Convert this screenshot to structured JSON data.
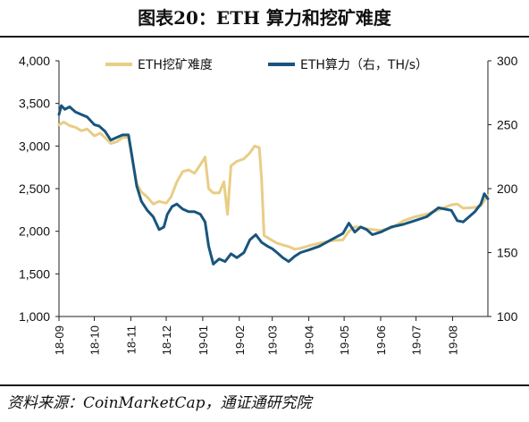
{
  "title": "图表20：ETH 算力和挖矿难度",
  "source": "资料来源：CoinMarketCap，通证通研究院",
  "colors": {
    "difficulty": "#e8cd85",
    "hashrate": "#17557f",
    "axis": "#222222"
  },
  "chart_data": {
    "type": "line",
    "x_type": "date",
    "x_tick_labels": [
      "18-09",
      "18-10",
      "18-11",
      "18-12",
      "19-01",
      "19-02",
      "19-03",
      "19-04",
      "19-05",
      "19-06",
      "19-07",
      "19-08"
    ],
    "xlim": [
      "2018-09-01",
      "2019-08-31"
    ],
    "y_left_ticks": [
      "4,000",
      "3,500",
      "3,000",
      "2,500",
      "2,000",
      "1,500",
      "1,000"
    ],
    "ylim_left": [
      1000,
      4000
    ],
    "y_right_ticks": [
      "300",
      "250",
      "200",
      "150",
      "100"
    ],
    "ylim_right": [
      100,
      300
    ],
    "grid": false,
    "legend_position": "top",
    "series": [
      {
        "name": "ETH挖矿难度",
        "axis": "left",
        "color": "#e8cd85",
        "points": [
          [
            "2018-09-01",
            3250
          ],
          [
            "2018-09-05",
            3280
          ],
          [
            "2018-09-10",
            3240
          ],
          [
            "2018-09-15",
            3220
          ],
          [
            "2018-09-20",
            3180
          ],
          [
            "2018-09-25",
            3200
          ],
          [
            "2018-10-01",
            3120
          ],
          [
            "2018-10-06",
            3150
          ],
          [
            "2018-10-10",
            3100
          ],
          [
            "2018-10-15",
            3030
          ],
          [
            "2018-10-20",
            3050
          ],
          [
            "2018-10-25",
            3100
          ],
          [
            "2018-10-30",
            3100
          ],
          [
            "2018-11-03",
            2780
          ],
          [
            "2018-11-06",
            2560
          ],
          [
            "2018-11-10",
            2460
          ],
          [
            "2018-11-15",
            2400
          ],
          [
            "2018-11-20",
            2320
          ],
          [
            "2018-11-25",
            2350
          ],
          [
            "2018-12-01",
            2330
          ],
          [
            "2018-12-05",
            2400
          ],
          [
            "2018-12-10",
            2580
          ],
          [
            "2018-12-15",
            2700
          ],
          [
            "2018-12-20",
            2720
          ],
          [
            "2018-12-25",
            2680
          ],
          [
            "2018-12-30",
            2780
          ],
          [
            "2019-01-03",
            2870
          ],
          [
            "2019-01-06",
            2500
          ],
          [
            "2019-01-10",
            2450
          ],
          [
            "2019-01-15",
            2450
          ],
          [
            "2019-01-19",
            2580
          ],
          [
            "2019-01-22",
            2200
          ],
          [
            "2019-01-25",
            2770
          ],
          [
            "2019-01-30",
            2820
          ],
          [
            "2019-02-05",
            2850
          ],
          [
            "2019-02-10",
            2920
          ],
          [
            "2019-02-14",
            3000
          ],
          [
            "2019-02-18",
            2980
          ],
          [
            "2019-02-20",
            2600
          ],
          [
            "2019-02-22",
            1950
          ],
          [
            "2019-02-28",
            1900
          ],
          [
            "2019-03-05",
            1860
          ],
          [
            "2019-03-10",
            1840
          ],
          [
            "2019-03-15",
            1820
          ],
          [
            "2019-03-20",
            1790
          ],
          [
            "2019-03-25",
            1800
          ],
          [
            "2019-04-01",
            1830
          ],
          [
            "2019-04-10",
            1860
          ],
          [
            "2019-04-20",
            1890
          ],
          [
            "2019-04-30",
            1900
          ],
          [
            "2019-05-05",
            2000
          ],
          [
            "2019-05-10",
            2050
          ],
          [
            "2019-05-15",
            2050
          ],
          [
            "2019-05-20",
            2030
          ],
          [
            "2019-05-25",
            2020
          ],
          [
            "2019-06-01",
            2010
          ],
          [
            "2019-06-10",
            2040
          ],
          [
            "2019-06-20",
            2120
          ],
          [
            "2019-06-30",
            2170
          ],
          [
            "2019-07-10",
            2200
          ],
          [
            "2019-07-20",
            2250
          ],
          [
            "2019-07-31",
            2310
          ],
          [
            "2019-08-05",
            2320
          ],
          [
            "2019-08-10",
            2270
          ],
          [
            "2019-08-20",
            2280
          ],
          [
            "2019-08-25",
            2300
          ],
          [
            "2019-08-31",
            2420
          ]
        ]
      },
      {
        "name": "ETH算力（右，TH/s）",
        "axis": "right",
        "color": "#17557f",
        "points": [
          [
            "2018-09-01",
            258
          ],
          [
            "2018-09-03",
            265
          ],
          [
            "2018-09-06",
            262
          ],
          [
            "2018-09-10",
            264
          ],
          [
            "2018-09-15",
            260
          ],
          [
            "2018-09-20",
            258
          ],
          [
            "2018-09-25",
            256
          ],
          [
            "2018-10-01",
            250
          ],
          [
            "2018-10-05",
            249
          ],
          [
            "2018-10-10",
            245
          ],
          [
            "2018-10-15",
            238
          ],
          [
            "2018-10-20",
            240
          ],
          [
            "2018-10-25",
            242
          ],
          [
            "2018-10-30",
            242
          ],
          [
            "2018-11-02",
            225
          ],
          [
            "2018-11-06",
            202
          ],
          [
            "2018-11-10",
            190
          ],
          [
            "2018-11-15",
            183
          ],
          [
            "2018-11-20",
            178
          ],
          [
            "2018-11-25",
            168
          ],
          [
            "2018-11-29",
            170
          ],
          [
            "2018-12-02",
            180
          ],
          [
            "2018-12-06",
            186
          ],
          [
            "2018-12-10",
            188
          ],
          [
            "2018-12-15",
            184
          ],
          [
            "2018-12-20",
            182
          ],
          [
            "2018-12-25",
            182
          ],
          [
            "2018-12-30",
            180
          ],
          [
            "2019-01-03",
            174
          ],
          [
            "2019-01-06",
            155
          ],
          [
            "2019-01-10",
            141
          ],
          [
            "2019-01-15",
            145
          ],
          [
            "2019-01-20",
            143
          ],
          [
            "2019-01-25",
            149
          ],
          [
            "2019-01-30",
            146
          ],
          [
            "2019-02-05",
            150
          ],
          [
            "2019-02-10",
            160
          ],
          [
            "2019-02-15",
            164
          ],
          [
            "2019-02-20",
            158
          ],
          [
            "2019-02-25",
            155
          ],
          [
            "2019-03-01",
            153
          ],
          [
            "2019-03-05",
            150
          ],
          [
            "2019-03-10",
            146
          ],
          [
            "2019-03-15",
            143
          ],
          [
            "2019-03-20",
            147
          ],
          [
            "2019-03-25",
            150
          ],
          [
            "2019-04-01",
            152
          ],
          [
            "2019-04-10",
            155
          ],
          [
            "2019-04-20",
            160
          ],
          [
            "2019-04-30",
            165
          ],
          [
            "2019-05-05",
            173
          ],
          [
            "2019-05-10",
            166
          ],
          [
            "2019-05-15",
            170
          ],
          [
            "2019-05-20",
            168
          ],
          [
            "2019-05-25",
            164
          ],
          [
            "2019-06-01",
            166
          ],
          [
            "2019-06-10",
            170
          ],
          [
            "2019-06-20",
            172
          ],
          [
            "2019-06-30",
            175
          ],
          [
            "2019-07-10",
            178
          ],
          [
            "2019-07-20",
            185
          ],
          [
            "2019-07-31",
            183
          ],
          [
            "2019-08-05",
            175
          ],
          [
            "2019-08-10",
            174
          ],
          [
            "2019-08-15",
            178
          ],
          [
            "2019-08-20",
            182
          ],
          [
            "2019-08-25",
            188
          ],
          [
            "2019-08-28",
            196
          ],
          [
            "2019-08-31",
            192
          ]
        ]
      }
    ]
  }
}
